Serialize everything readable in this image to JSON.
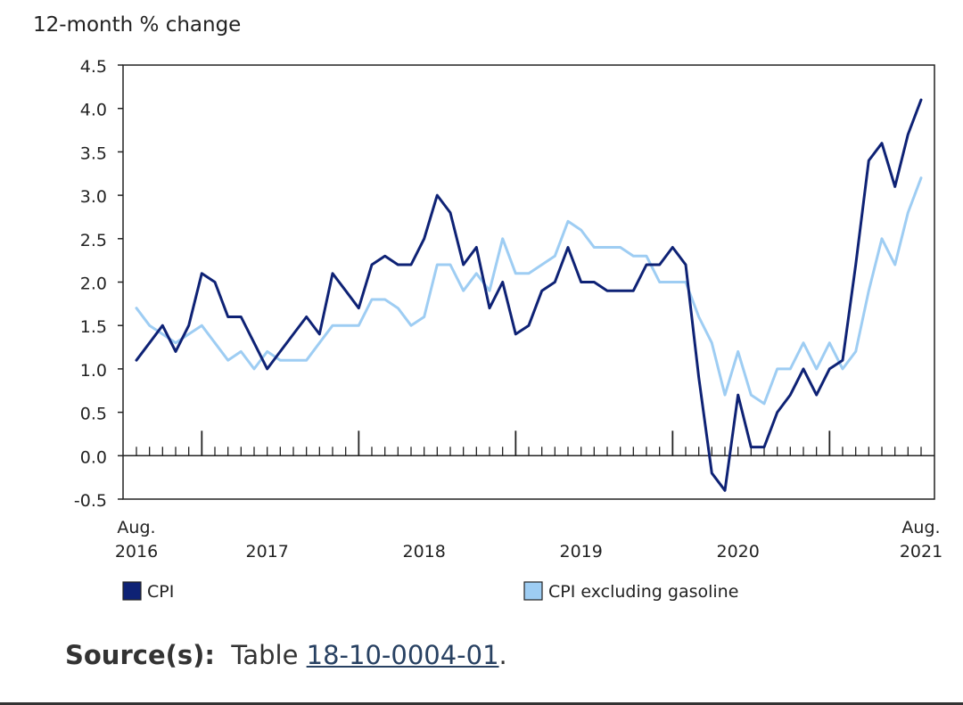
{
  "chart_data": {
    "type": "line",
    "ylabel": "12-month % change",
    "ylim": [
      -0.5,
      4.5
    ],
    "yticks": [
      "4.5",
      "4.0",
      "3.5",
      "3.0",
      "2.5",
      "2.0",
      "1.5",
      "1.0",
      "0.5",
      "0.0",
      "-0.5"
    ],
    "start_month": "2016-08",
    "end_month": "2021-08",
    "x_labels": [
      {
        "month": "2016-08",
        "line1": "Aug.",
        "line2": "2016"
      },
      {
        "month": "2017-06",
        "line1": "",
        "line2": "2017"
      },
      {
        "month": "2018-06",
        "line1": "",
        "line2": "2018"
      },
      {
        "month": "2019-06",
        "line1": "",
        "line2": "2019"
      },
      {
        "month": "2020-06",
        "line1": "",
        "line2": "2020"
      },
      {
        "month": "2021-08",
        "line1": "Aug.",
        "line2": "2021"
      }
    ],
    "series": [
      {
        "name": "CPI",
        "color": "#0e2275",
        "values": [
          1.1,
          1.3,
          1.5,
          1.2,
          1.5,
          2.1,
          2.0,
          1.6,
          1.6,
          1.3,
          1.0,
          1.2,
          1.4,
          1.6,
          1.4,
          2.1,
          1.9,
          1.7,
          2.2,
          2.3,
          2.2,
          2.2,
          2.5,
          3.0,
          2.8,
          2.2,
          2.4,
          1.7,
          2.0,
          1.4,
          1.5,
          1.9,
          2.0,
          2.4,
          2.0,
          2.0,
          1.9,
          1.9,
          1.9,
          2.2,
          2.2,
          2.4,
          2.2,
          0.9,
          -0.2,
          -0.4,
          0.7,
          0.1,
          0.1,
          0.5,
          0.7,
          1.0,
          0.7,
          1.0,
          1.1,
          2.2,
          3.4,
          3.6,
          3.1,
          3.7,
          4.1
        ]
      },
      {
        "name": "CPI excluding gasoline",
        "color": "#9ecdf3",
        "values": [
          1.7,
          1.5,
          1.4,
          1.3,
          1.4,
          1.5,
          1.3,
          1.1,
          1.2,
          1.0,
          1.2,
          1.1,
          1.1,
          1.1,
          1.3,
          1.5,
          1.5,
          1.5,
          1.8,
          1.8,
          1.7,
          1.5,
          1.6,
          2.2,
          2.2,
          1.9,
          2.1,
          1.9,
          2.5,
          2.1,
          2.1,
          2.2,
          2.3,
          2.7,
          2.6,
          2.4,
          2.4,
          2.4,
          2.3,
          2.3,
          2.0,
          2.0,
          2.0,
          1.6,
          1.3,
          0.7,
          1.2,
          0.7,
          0.6,
          1.0,
          1.0,
          1.3,
          1.0,
          1.3,
          1.0,
          1.2,
          1.9,
          2.5,
          2.2,
          2.8,
          3.2
        ]
      }
    ],
    "legend_position": "bottom",
    "grid": false
  },
  "source": {
    "label": "Source(s):",
    "prefix": "Table",
    "link": "18-10-0004-01",
    "suffix": "."
  }
}
